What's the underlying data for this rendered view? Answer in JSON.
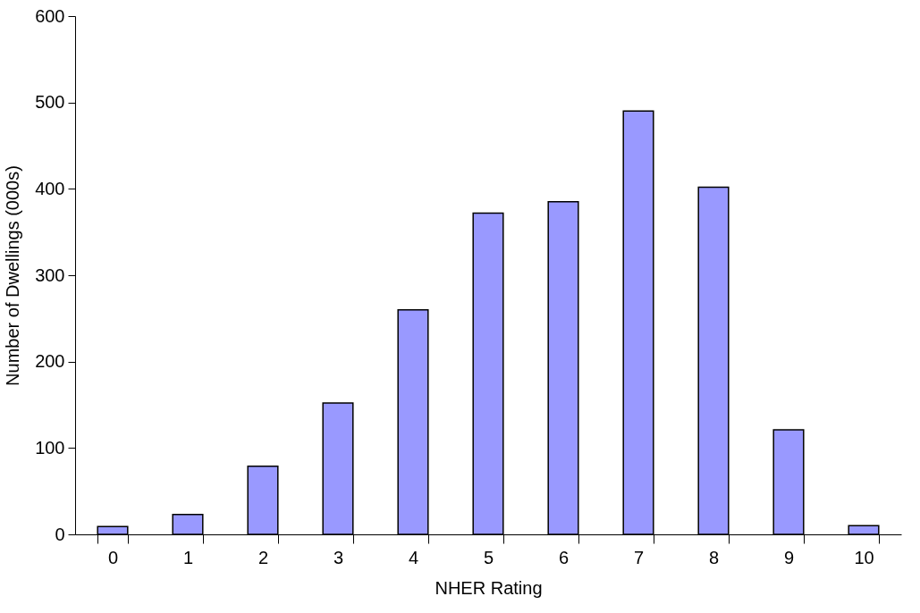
{
  "chart_data": {
    "type": "bar",
    "xlabel": "NHER Rating",
    "ylabel": "Number of Dwellings (000s)",
    "categories": [
      "0",
      "1",
      "2",
      "3",
      "4",
      "5",
      "6",
      "7",
      "8",
      "9",
      "10"
    ],
    "values": [
      9,
      23,
      79,
      152,
      260,
      372,
      385,
      490,
      402,
      121,
      10
    ],
    "color": "#9999ff",
    "ylim": [
      0,
      600
    ],
    "yticks": [
      0,
      100,
      200,
      300,
      400,
      500,
      600
    ],
    "grid": false
  }
}
